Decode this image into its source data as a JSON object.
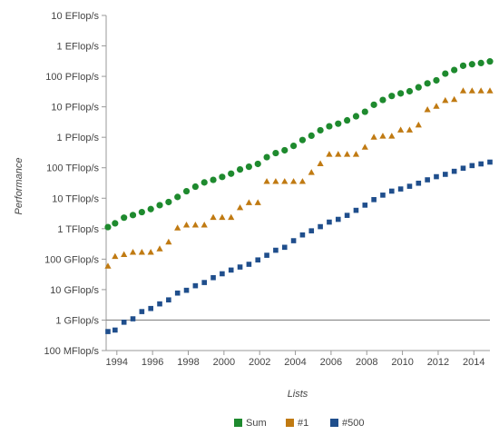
{
  "chart_data": {
    "type": "scatter",
    "title": "",
    "xlabel": "Lists",
    "ylabel": "Performance",
    "y_scale": "log",
    "ylim_gflops": [
      0.1,
      10000000000
    ],
    "xlim": [
      1993.4,
      2014.9
    ],
    "y_ticks": [
      {
        "value": 0.1,
        "label": "100 MFlop/s"
      },
      {
        "value": 1,
        "label": "1 GFlop/s"
      },
      {
        "value": 10,
        "label": "10 GFlop/s"
      },
      {
        "value": 100,
        "label": "100 GFlop/s"
      },
      {
        "value": 1000,
        "label": "1 TFlop/s"
      },
      {
        "value": 10000,
        "label": "10 TFlop/s"
      },
      {
        "value": 100000,
        "label": "100 TFlop/s"
      },
      {
        "value": 1000000,
        "label": "1 PFlop/s"
      },
      {
        "value": 10000000,
        "label": "10 PFlop/s"
      },
      {
        "value": 100000000,
        "label": "100 PFlop/s"
      },
      {
        "value": 1000000000,
        "label": "1 EFlop/s"
      },
      {
        "value": 10000000000,
        "label": "10 EFlop/s"
      }
    ],
    "x_ticks": [
      {
        "value": 1994,
        "label": "1994"
      },
      {
        "value": 1996,
        "label": "1996"
      },
      {
        "value": 1998,
        "label": "1998"
      },
      {
        "value": 2000,
        "label": "2000"
      },
      {
        "value": 2002,
        "label": "2002"
      },
      {
        "value": 2004,
        "label": "2004"
      },
      {
        "value": 2006,
        "label": "2006"
      },
      {
        "value": 2008,
        "label": "2008"
      },
      {
        "value": 2010,
        "label": "2010"
      },
      {
        "value": 2012,
        "label": "2012"
      },
      {
        "value": 2014,
        "label": "2014"
      }
    ],
    "reference_line_gflops": 1,
    "grid": false,
    "legend_position": "bottom",
    "x": [
      1993.5,
      1993.9,
      1994.4,
      1994.9,
      1995.4,
      1995.9,
      1996.4,
      1996.9,
      1997.4,
      1997.9,
      1998.4,
      1998.9,
      1999.4,
      1999.9,
      2000.4,
      2000.9,
      2001.4,
      2001.9,
      2002.4,
      2002.9,
      2003.4,
      2003.9,
      2004.4,
      2004.9,
      2005.4,
      2005.9,
      2006.4,
      2006.9,
      2007.4,
      2007.9,
      2008.4,
      2008.9,
      2009.4,
      2009.9,
      2010.4,
      2010.9,
      2011.4,
      2011.9,
      2012.4,
      2012.9,
      2013.4,
      2013.9,
      2014.4,
      2014.9
    ],
    "series": [
      {
        "name": "Sum",
        "marker": "circle",
        "color": "#1e8a2e",
        "values_gflops": [
          1130,
          1500,
          2300,
          2800,
          3500,
          4400,
          5900,
          7500,
          11000,
          17000,
          24000,
          33000,
          40000,
          50000,
          64000,
          88000,
          108000,
          134000,
          223000,
          303000,
          375000,
          524000,
          813000,
          1130000,
          1700000,
          2300000,
          2800000,
          3600000,
          4900000,
          6900000,
          11700000,
          16800000,
          22700000,
          27600000,
          32400000,
          43700000,
          58800000,
          74000000,
          123000000,
          162000000,
          224000000,
          250000000,
          274000000,
          309000000
        ]
      },
      {
        "name": "#1",
        "marker": "triangle",
        "color": "#c07a12",
        "values_gflops": [
          59.7,
          124,
          143,
          170,
          170,
          170,
          220,
          368,
          1068,
          1338,
          1338,
          1338,
          2380,
          2380,
          2380,
          4938,
          7226,
          7226,
          35860,
          35860,
          35860,
          35860,
          35860,
          70720,
          136800,
          280600,
          280600,
          280600,
          280600,
          478200,
          1026000,
          1105000,
          1105000,
          1759000,
          1759000,
          2566000,
          8162000,
          10510000,
          16324000,
          17590000,
          33863000,
          33863000,
          33863000,
          33863000
        ]
      },
      {
        "name": "#500",
        "marker": "square",
        "color": "#1f4e8c",
        "values_gflops": [
          0.42,
          0.47,
          0.85,
          1.1,
          1.9,
          2.4,
          3.4,
          4.6,
          7.7,
          9.5,
          13.4,
          17.1,
          24.7,
          33.1,
          43.8,
          55.1,
          67.8,
          94.3,
          134,
          196,
          245,
          403,
          624,
          851,
          1166,
          1646,
          2026,
          2737,
          4005,
          5929,
          9000,
          12640,
          17100,
          20100,
          24670,
          31100,
          40200,
          50900,
          60800,
          76500,
          96600,
          117800,
          133700,
          153400
        ]
      }
    ]
  }
}
